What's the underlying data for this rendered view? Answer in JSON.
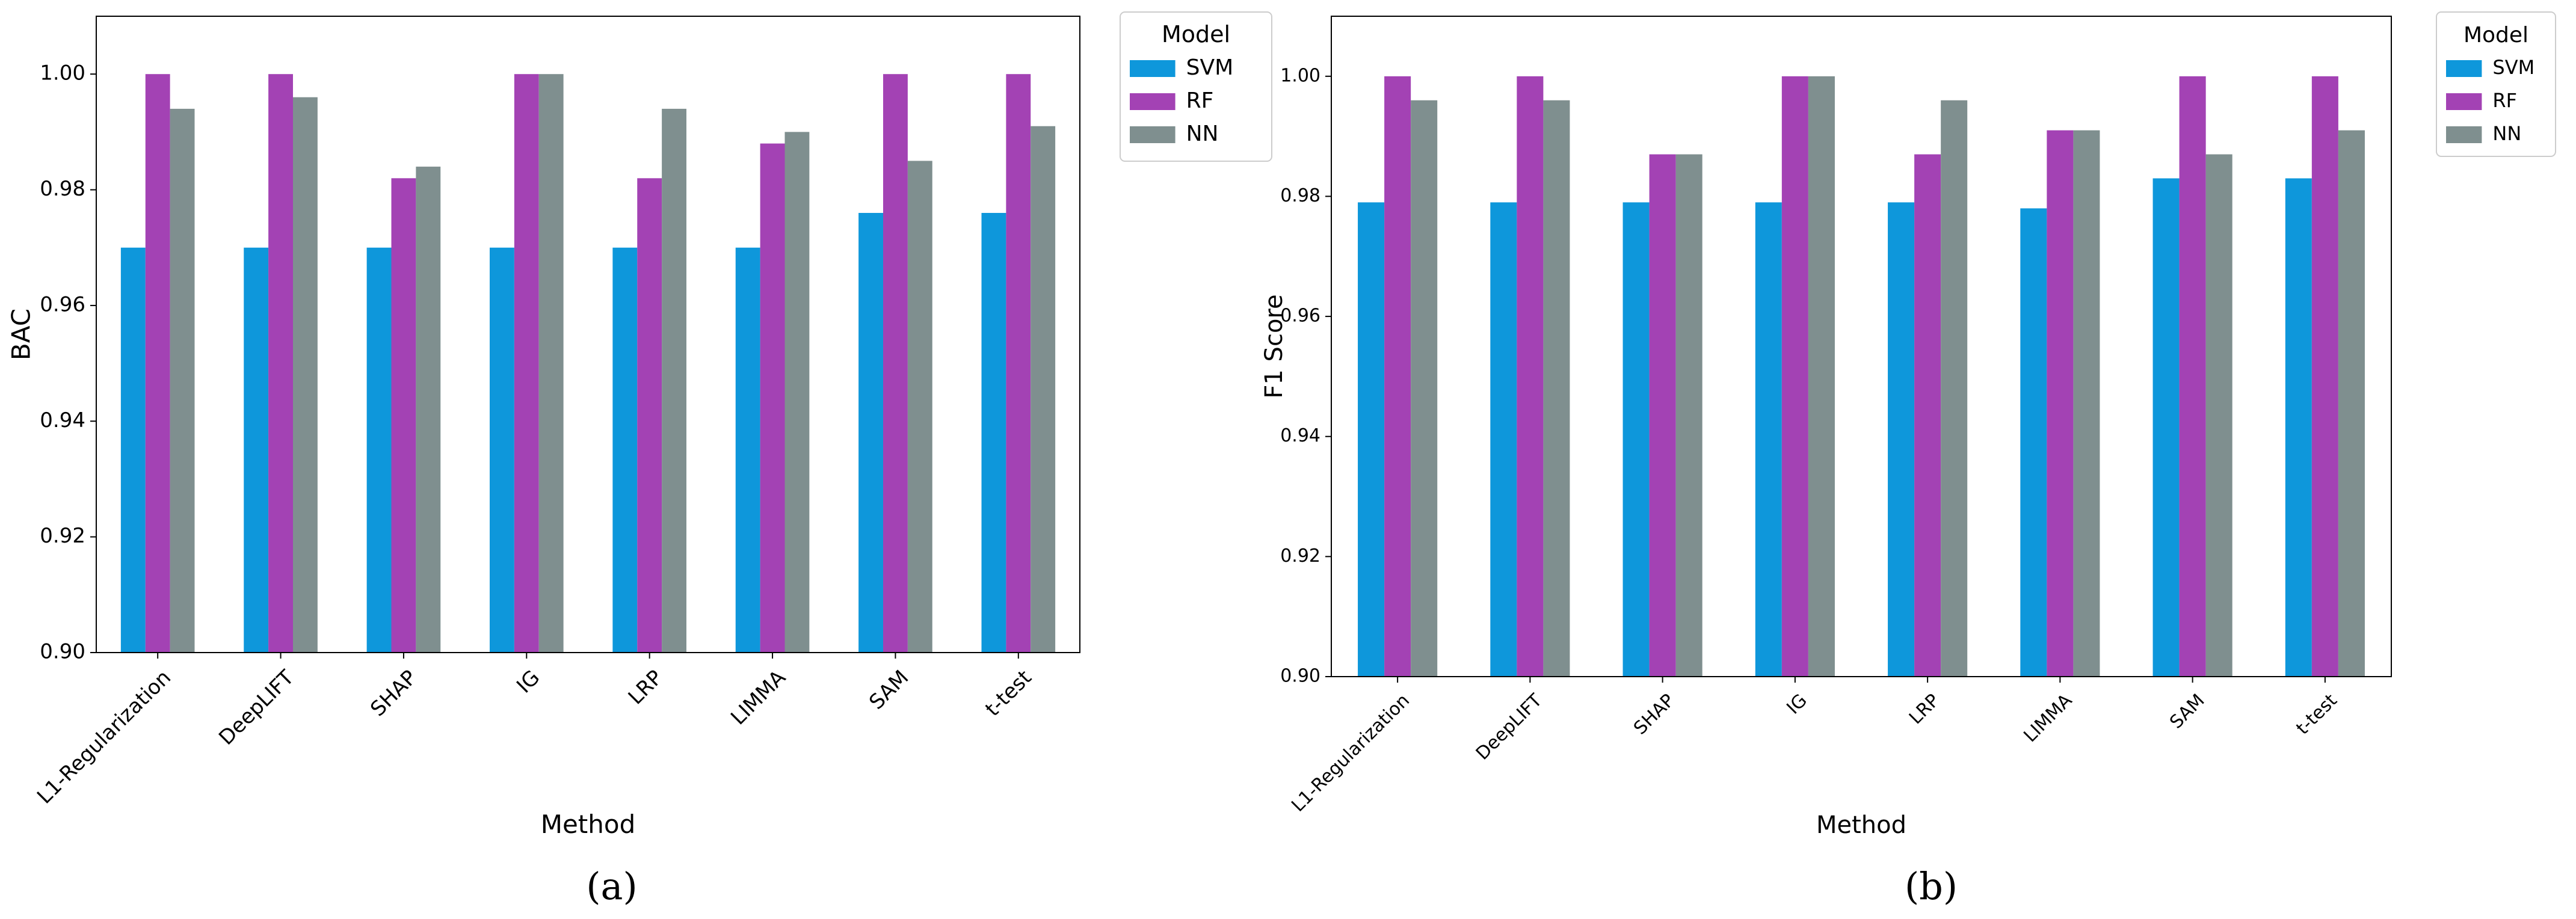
{
  "colors": {
    "SVM": "#0e97db",
    "RF": "#a342b4",
    "NN": "#7f8f8f"
  },
  "chart_data": [
    {
      "type": "bar",
      "caption": "(a)",
      "xlabel": "Method",
      "ylabel": "BAC",
      "ylim": [
        0.9,
        1.01
      ],
      "yticks": [
        "0.90",
        "0.92",
        "0.94",
        "0.96",
        "0.98",
        "1.00"
      ],
      "grid": false,
      "legend_title": "Model",
      "legend_position": "outside-top-right",
      "categories": [
        "L1-Regularization",
        "DeepLIFT",
        "SHAP",
        "IG",
        "LRP",
        "LIMMA",
        "SAM",
        "t-test"
      ],
      "series": [
        {
          "name": "SVM",
          "values": [
            0.97,
            0.97,
            0.97,
            0.97,
            0.97,
            0.97,
            0.976,
            0.976
          ]
        },
        {
          "name": "RF",
          "values": [
            1.0,
            1.0,
            0.982,
            1.0,
            0.982,
            0.988,
            1.0,
            1.0
          ]
        },
        {
          "name": "NN",
          "values": [
            0.994,
            0.996,
            0.984,
            1.0,
            0.994,
            0.99,
            0.985,
            0.991
          ]
        }
      ]
    },
    {
      "type": "bar",
      "caption": "(b)",
      "xlabel": "Method",
      "ylabel": "F1 Score",
      "ylim": [
        0.9,
        1.01
      ],
      "yticks": [
        "0.90",
        "0.92",
        "0.94",
        "0.96",
        "0.98",
        "1.00"
      ],
      "grid": false,
      "legend_title": "Model",
      "legend_position": "outside-top-right",
      "categories": [
        "L1-Regularization",
        "DeepLIFT",
        "SHAP",
        "IG",
        "LRP",
        "LIMMA",
        "SAM",
        "t-test"
      ],
      "series": [
        {
          "name": "SVM",
          "values": [
            0.979,
            0.979,
            0.979,
            0.979,
            0.979,
            0.978,
            0.983,
            0.983
          ]
        },
        {
          "name": "RF",
          "values": [
            1.0,
            1.0,
            0.987,
            1.0,
            0.987,
            0.991,
            1.0,
            1.0
          ]
        },
        {
          "name": "NN",
          "values": [
            0.996,
            0.996,
            0.987,
            1.0,
            0.996,
            0.991,
            0.987,
            0.991
          ]
        }
      ]
    }
  ]
}
